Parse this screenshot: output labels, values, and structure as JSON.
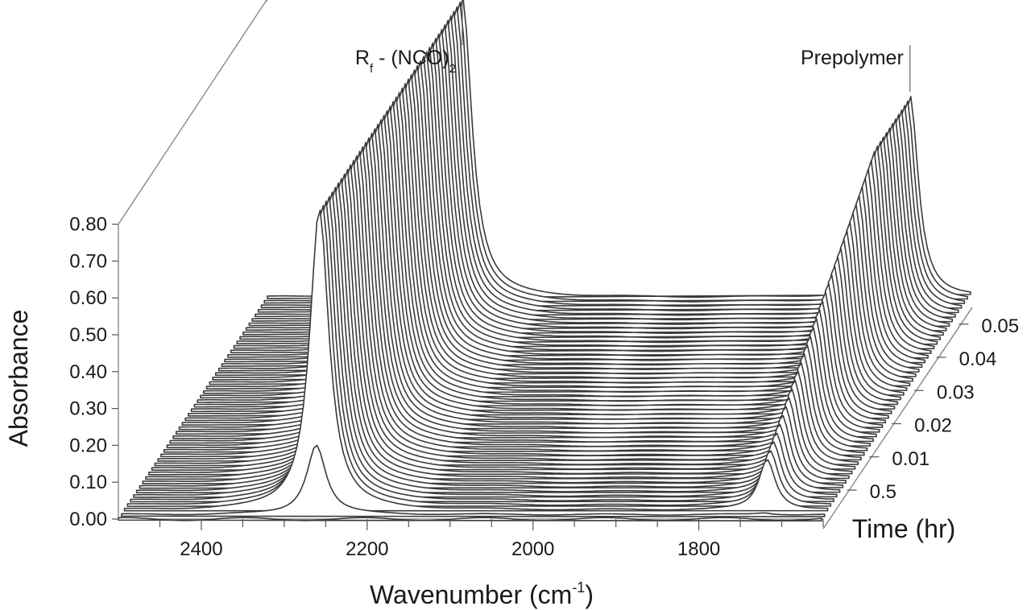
{
  "chart_data": {
    "type": "line",
    "subtype": "3d-waterfall",
    "title": "",
    "xlabel": "Wavenumber (cm",
    "xlabel_superscript": "-1",
    "xlabel_close": ")",
    "ylabel": "Absorbance",
    "zlabel": "Time (hr)",
    "x_ticks": [
      "2400",
      "2200",
      "2000",
      "1800"
    ],
    "x_tick_values": [
      2400,
      2200,
      2000,
      1800
    ],
    "xlim": [
      2500,
      1650
    ],
    "y_ticks": [
      "0.00",
      "0.10",
      "0.20",
      "0.30",
      "0.40",
      "0.50",
      "0.60",
      "0.70",
      "0.80"
    ],
    "ylim": [
      0,
      0.8
    ],
    "z_ticks": [
      "0.5",
      "0.01",
      "0.02",
      "0.03",
      "0.04",
      "0.05"
    ],
    "n_spectra": 50,
    "annotations": [
      {
        "main": "R",
        "sub": "f",
        "rest": " - (NCO)",
        "sub2": "2",
        "wavenumber": 2265
      },
      {
        "main": "Prepolymer",
        "sub": "",
        "rest": "",
        "sub2": "",
        "wavenumber": 1725
      }
    ],
    "series": [
      {
        "name": "R_f-(NCO)2 band",
        "center": 2265,
        "width": 14,
        "peak_first": 0.0,
        "peak_second": 0.19,
        "peak_final": 0.82
      },
      {
        "name": "Prepolymer band",
        "center": 1725,
        "width": 12,
        "peak_first": 0.0,
        "peak_second": 0.005,
        "peak_final": 0.55
      }
    ],
    "grid": false
  }
}
